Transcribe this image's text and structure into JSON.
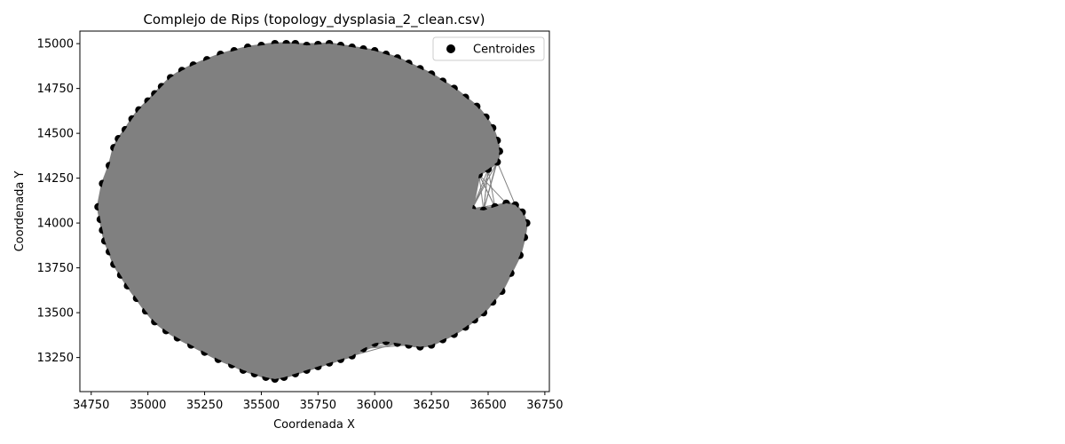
{
  "chart_data": {
    "type": "scatter",
    "title": "Complejo de Rips (topology_dysplasia_2_clean.csv)",
    "xlabel": "Coordenada X",
    "ylabel": "Coordenada Y",
    "xlim": [
      34700,
      36770
    ],
    "ylim": [
      13060,
      15070
    ],
    "xticks": [
      34750,
      35000,
      35250,
      35500,
      35750,
      36000,
      36250,
      36500,
      36750
    ],
    "yticks": [
      13250,
      13500,
      13750,
      14000,
      14250,
      14500,
      14750,
      15000
    ],
    "grid": false,
    "legend": {
      "position": "top-right",
      "entries": [
        "Centroides"
      ]
    },
    "series": [
      {
        "name": "Centroides",
        "kind": "scatter",
        "color": "#000000",
        "x": [
          34780,
          34800,
          34830,
          34850,
          34870,
          34900,
          34930,
          34960,
          35000,
          35030,
          35060,
          35100,
          35150,
          35200,
          35260,
          35320,
          35380,
          35440,
          35500,
          35560,
          35610,
          35650,
          35700,
          35750,
          35800,
          35850,
          35900,
          35950,
          36000,
          36050,
          36100,
          36150,
          36200,
          36250,
          36300,
          36350,
          36400,
          36450,
          36490,
          36520,
          36540,
          36550,
          36540,
          36500,
          36460,
          36430,
          36480,
          36530,
          36580,
          36620,
          36650,
          36670,
          36660,
          36640,
          36600,
          36560,
          36520,
          36480,
          36440,
          36400,
          36350,
          36300,
          36250,
          36200,
          36150,
          36100,
          36050,
          36000,
          35950,
          35900,
          35850,
          35800,
          35750,
          35700,
          35650,
          35600,
          35560,
          35520,
          35470,
          35420,
          35370,
          35310,
          35250,
          35190,
          35130,
          35080,
          35030,
          34990,
          34950,
          34910,
          34880,
          34850,
          34830,
          34810,
          34800,
          34790
        ],
        "y": [
          14090,
          14220,
          14320,
          14420,
          14470,
          14520,
          14580,
          14630,
          14680,
          14720,
          14760,
          14810,
          14850,
          14880,
          14910,
          14940,
          14960,
          14980,
          14990,
          15000,
          15000,
          15000,
          14990,
          14995,
          15000,
          14990,
          14980,
          14970,
          14960,
          14940,
          14920,
          14890,
          14860,
          14830,
          14790,
          14750,
          14700,
          14650,
          14590,
          14530,
          14460,
          14400,
          14340,
          14300,
          14270,
          14080,
          14070,
          14090,
          14110,
          14100,
          14060,
          14000,
          13920,
          13820,
          13720,
          13620,
          13560,
          13500,
          13460,
          13420,
          13380,
          13350,
          13320,
          13310,
          13320,
          13330,
          13340,
          13330,
          13300,
          13260,
          13240,
          13220,
          13200,
          13180,
          13160,
          13140,
          13130,
          13140,
          13160,
          13180,
          13210,
          13240,
          13280,
          13320,
          13360,
          13400,
          13450,
          13510,
          13580,
          13650,
          13710,
          13770,
          13840,
          13900,
          13960,
          14020
        ]
      }
    ],
    "edges_color": "#808080"
  }
}
